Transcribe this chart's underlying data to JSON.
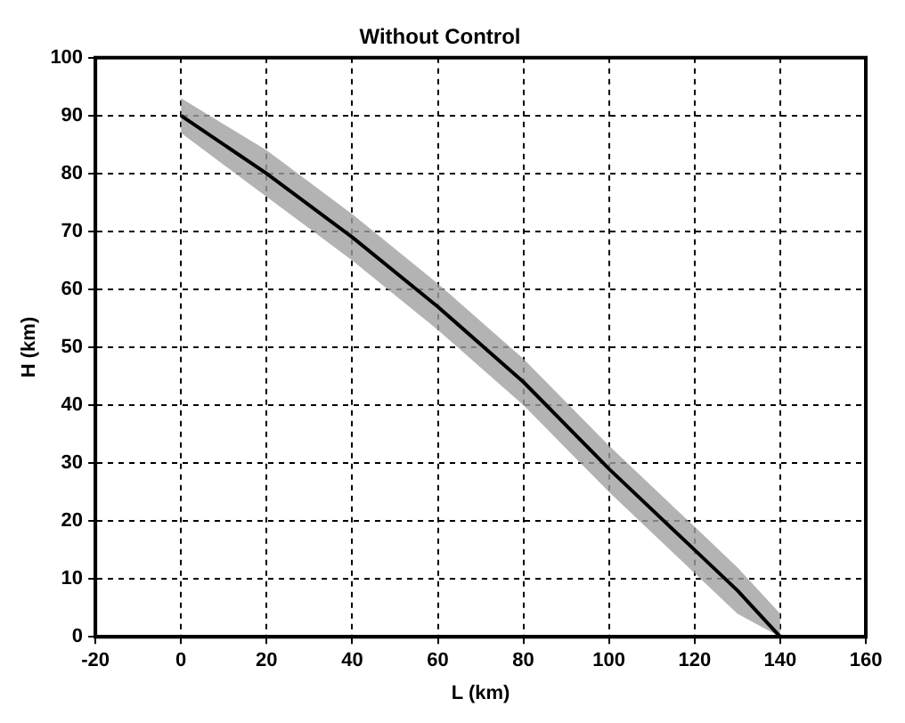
{
  "chart_data": {
    "type": "line",
    "title": "Without Control",
    "xlabel": "L (km)",
    "ylabel": "H (km)",
    "x": [
      0,
      20,
      40,
      60,
      80,
      100,
      120,
      130,
      140
    ],
    "series": [
      {
        "color": "#000000",
        "values": [
          90,
          80,
          69,
          57,
          44,
          29,
          15,
          8,
          0
        ],
        "lower": [
          87,
          76,
          65,
          53,
          40,
          25,
          11,
          4,
          0
        ],
        "upper": [
          93,
          84,
          73,
          61,
          48,
          33,
          19,
          12,
          4
        ]
      }
    ],
    "xlim": [
      -20,
      160
    ],
    "xticks": [
      -20,
      0,
      20,
      40,
      60,
      80,
      100,
      120,
      140,
      160
    ],
    "ylim": [
      0,
      100
    ],
    "yticks": [
      0,
      10,
      20,
      30,
      40,
      50,
      60,
      70,
      80,
      90,
      100
    ],
    "grid": true,
    "legend": false,
    "marker": "none",
    "line_style": "solid"
  }
}
